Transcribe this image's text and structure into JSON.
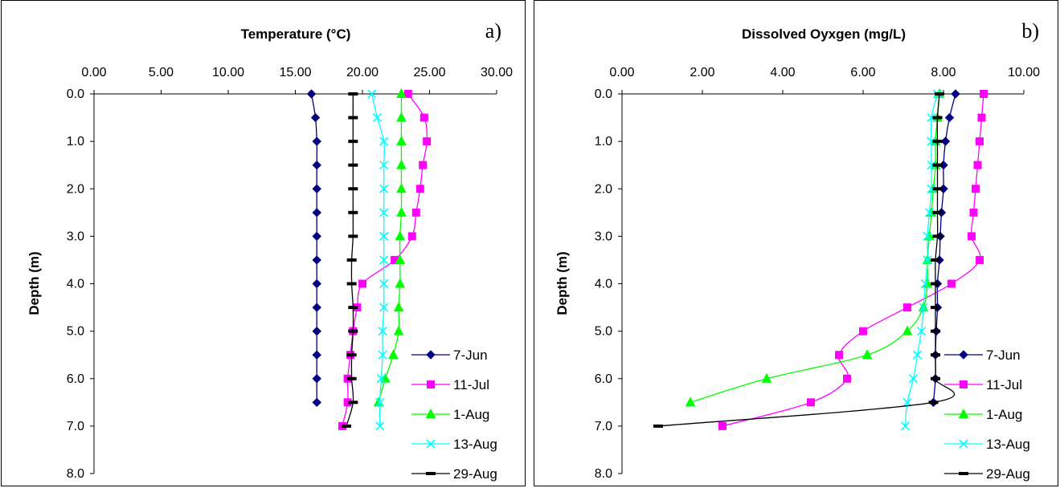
{
  "chart_data": [
    {
      "type": "line",
      "panel_label": "a)",
      "xlabel": "Temperature (°C)",
      "ylabel": "Depth (m)",
      "xlim": [
        0,
        30
      ],
      "ylim": [
        0,
        8
      ],
      "x_axis_position": "top",
      "y_inverted": true,
      "xtick_labels": [
        "0.00",
        "5.00",
        "10.00",
        "15.00",
        "20.00",
        "25.00",
        "30.00"
      ],
      "ytick_labels": [
        "0.0",
        "1.0",
        "2.0",
        "3.0",
        "4.0",
        "5.0",
        "6.0",
        "7.0",
        "8.0"
      ],
      "grid": false,
      "legend_position": "bottom-right",
      "series": [
        {
          "name": "7-Jun",
          "color": "#000080",
          "marker": "diamond",
          "points": [
            [
              16.2,
              0
            ],
            [
              16.5,
              0.5
            ],
            [
              16.6,
              1
            ],
            [
              16.6,
              1.5
            ],
            [
              16.6,
              2
            ],
            [
              16.6,
              2.5
            ],
            [
              16.6,
              3
            ],
            [
              16.6,
              3.5
            ],
            [
              16.6,
              4
            ],
            [
              16.6,
              4.5
            ],
            [
              16.6,
              5
            ],
            [
              16.6,
              5.5
            ],
            [
              16.6,
              6
            ],
            [
              16.6,
              6.5
            ]
          ]
        },
        {
          "name": "11-Jul",
          "color": "#FF00FF",
          "marker": "square",
          "points": [
            [
              23.4,
              0
            ],
            [
              24.6,
              0.5
            ],
            [
              24.8,
              1
            ],
            [
              24.5,
              1.5
            ],
            [
              24.3,
              2
            ],
            [
              24.0,
              2.5
            ],
            [
              23.7,
              3
            ],
            [
              22.4,
              3.5
            ],
            [
              20.0,
              4
            ],
            [
              19.6,
              4.5
            ],
            [
              19.3,
              5
            ],
            [
              19.1,
              5.5
            ],
            [
              18.9,
              6
            ],
            [
              18.9,
              6.5
            ],
            [
              18.5,
              7
            ]
          ]
        },
        {
          "name": "1-Aug",
          "color": "#00FF00",
          "marker": "triangle",
          "points": [
            [
              22.9,
              0
            ],
            [
              22.9,
              0.5
            ],
            [
              22.9,
              1
            ],
            [
              22.9,
              1.5
            ],
            [
              22.9,
              2
            ],
            [
              22.9,
              2.5
            ],
            [
              22.8,
              3
            ],
            [
              22.8,
              3.5
            ],
            [
              22.8,
              4
            ],
            [
              22.7,
              4.5
            ],
            [
              22.7,
              5
            ],
            [
              22.3,
              5.5
            ],
            [
              21.7,
              6
            ],
            [
              21.2,
              6.5
            ]
          ]
        },
        {
          "name": "13-Aug",
          "color": "#00FFFF",
          "marker": "x",
          "points": [
            [
              20.7,
              0
            ],
            [
              21.1,
              0.5
            ],
            [
              21.6,
              1
            ],
            [
              21.6,
              1.5
            ],
            [
              21.6,
              2
            ],
            [
              21.6,
              2.5
            ],
            [
              21.6,
              3
            ],
            [
              21.6,
              3.5
            ],
            [
              21.6,
              4
            ],
            [
              21.6,
              4.5
            ],
            [
              21.5,
              5
            ],
            [
              21.5,
              5.5
            ],
            [
              21.4,
              6
            ],
            [
              21.3,
              6.5
            ],
            [
              21.3,
              7
            ]
          ]
        },
        {
          "name": "29-Aug",
          "color": "#000000",
          "marker": "dash",
          "points": [
            [
              19.3,
              0
            ],
            [
              19.3,
              0.5
            ],
            [
              19.3,
              1
            ],
            [
              19.3,
              1.5
            ],
            [
              19.3,
              2
            ],
            [
              19.3,
              2.5
            ],
            [
              19.3,
              3
            ],
            [
              19.2,
              3.5
            ],
            [
              19.2,
              4
            ],
            [
              19.3,
              4.5
            ],
            [
              19.3,
              5
            ],
            [
              19.2,
              5.5
            ],
            [
              19.2,
              6
            ],
            [
              19.3,
              6.5
            ],
            [
              18.8,
              7
            ]
          ]
        }
      ]
    },
    {
      "type": "line",
      "panel_label": "b)",
      "xlabel": "Dissolved Oyxgen (mg/L)",
      "ylabel": "Depth (m)",
      "xlim": [
        0,
        10
      ],
      "ylim": [
        0,
        8
      ],
      "x_axis_position": "top",
      "y_inverted": true,
      "xtick_labels": [
        "0.00",
        "2.00",
        "4.00",
        "6.00",
        "8.00",
        "10.00"
      ],
      "ytick_labels": [
        "0.0",
        "1.0",
        "2.0",
        "3.0",
        "4.0",
        "5.0",
        "6.0",
        "7.0",
        "8.0"
      ],
      "grid": false,
      "legend_position": "bottom-right",
      "series": [
        {
          "name": "7-Jun",
          "color": "#000080",
          "marker": "diamond",
          "points": [
            [
              8.3,
              0
            ],
            [
              8.15,
              0.5
            ],
            [
              8.05,
              1
            ],
            [
              8.0,
              1.5
            ],
            [
              8.0,
              2
            ],
            [
              7.95,
              2.5
            ],
            [
              7.92,
              3
            ],
            [
              7.9,
              3.5
            ],
            [
              7.85,
              4
            ],
            [
              7.85,
              4.5
            ],
            [
              7.82,
              5
            ],
            [
              7.8,
              5.5
            ],
            [
              7.8,
              6
            ],
            [
              7.75,
              6.5
            ]
          ]
        },
        {
          "name": "11-Jul",
          "color": "#FF00FF",
          "marker": "square",
          "points": [
            [
              9.0,
              0
            ],
            [
              8.95,
              0.5
            ],
            [
              8.9,
              1
            ],
            [
              8.85,
              1.5
            ],
            [
              8.8,
              2
            ],
            [
              8.75,
              2.5
            ],
            [
              8.7,
              3
            ],
            [
              8.9,
              3.5
            ],
            [
              8.2,
              4
            ],
            [
              7.1,
              4.5
            ],
            [
              6.0,
              5
            ],
            [
              5.4,
              5.5
            ],
            [
              5.6,
              6
            ],
            [
              4.7,
              6.5
            ],
            [
              2.5,
              7
            ]
          ]
        },
        {
          "name": "1-Aug",
          "color": "#00FF00",
          "marker": "triangle",
          "points": [
            [
              7.9,
              0
            ],
            [
              7.85,
              0.5
            ],
            [
              7.8,
              1
            ],
            [
              7.8,
              1.5
            ],
            [
              7.75,
              2
            ],
            [
              7.7,
              2.5
            ],
            [
              7.65,
              3
            ],
            [
              7.6,
              3.5
            ],
            [
              7.6,
              4
            ],
            [
              7.5,
              4.5
            ],
            [
              7.1,
              5
            ],
            [
              6.1,
              5.5
            ],
            [
              3.6,
              6
            ],
            [
              1.7,
              6.5
            ]
          ]
        },
        {
          "name": "13-Aug",
          "color": "#00FFFF",
          "marker": "x",
          "points": [
            [
              7.85,
              0
            ],
            [
              7.7,
              0.5
            ],
            [
              7.7,
              1
            ],
            [
              7.7,
              1.5
            ],
            [
              7.7,
              2
            ],
            [
              7.65,
              2.5
            ],
            [
              7.6,
              3
            ],
            [
              7.6,
              3.5
            ],
            [
              7.55,
              4
            ],
            [
              7.5,
              4.5
            ],
            [
              7.45,
              5
            ],
            [
              7.35,
              5.5
            ],
            [
              7.25,
              6
            ],
            [
              7.1,
              6.5
            ],
            [
              7.05,
              7
            ]
          ]
        },
        {
          "name": "29-Aug",
          "color": "#000000",
          "marker": "dash",
          "points": [
            [
              7.9,
              0
            ],
            [
              7.85,
              0.5
            ],
            [
              7.85,
              1
            ],
            [
              7.85,
              1.5
            ],
            [
              7.85,
              2
            ],
            [
              7.85,
              2.5
            ],
            [
              7.85,
              3
            ],
            [
              7.8,
              3.5
            ],
            [
              7.8,
              4
            ],
            [
              7.8,
              4.5
            ],
            [
              7.8,
              5
            ],
            [
              7.8,
              5.5
            ],
            [
              7.8,
              6
            ],
            [
              7.75,
              6.5
            ],
            [
              0.9,
              7
            ]
          ]
        }
      ]
    }
  ]
}
